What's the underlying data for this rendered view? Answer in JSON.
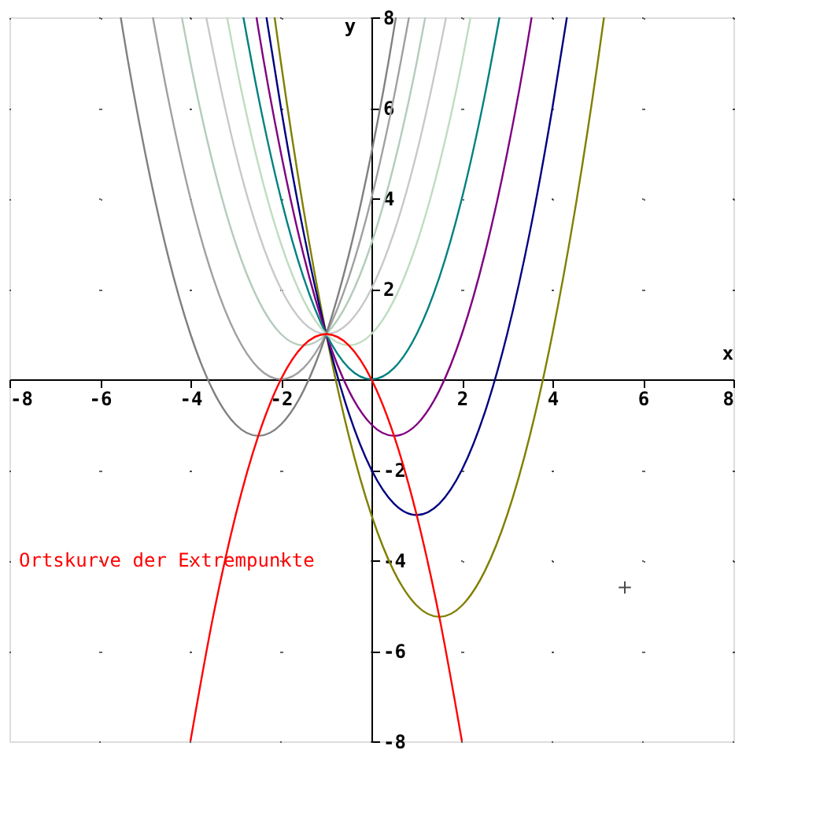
{
  "chart_data": {
    "type": "line",
    "xlabel": "x",
    "ylabel": "y",
    "xlim": [
      -8,
      8
    ],
    "ylim": [
      -8,
      8
    ],
    "xticks": [
      -8,
      -6,
      -4,
      -2,
      2,
      4,
      6,
      8
    ],
    "yticks": [
      -8,
      -6,
      -4,
      -2,
      2,
      4,
      6,
      8
    ],
    "grid": true,
    "marker": "none",
    "line_style": "solid",
    "annotations": [
      "Ortskurve der Extrempunkte"
    ],
    "series": [
      {
        "color": "#808000",
        "x": [
          -2.14,
          -2,
          -1.5,
          -1,
          -0.5,
          0,
          0.5,
          1,
          1.5,
          2,
          2.5,
          3,
          3.5,
          4,
          4.5,
          5,
          5.14
        ],
        "values": [
          8,
          7,
          3.75,
          1,
          -1.25,
          -3,
          -4.25,
          -5,
          -5.25,
          -5,
          -4.25,
          -3,
          -1.25,
          1,
          3.75,
          7,
          8
        ]
      },
      {
        "color": "#000080",
        "x": [
          -2.32,
          -2,
          -1.5,
          -1,
          -0.5,
          0,
          0.5,
          1,
          1.5,
          2,
          2.5,
          3,
          3.5,
          4,
          4.32
        ],
        "values": [
          8,
          6,
          3.25,
          1,
          -0.75,
          -2,
          -2.75,
          -3,
          -2.75,
          -2,
          -0.75,
          1,
          3.25,
          6,
          8
        ]
      },
      {
        "color": "#800080",
        "x": [
          -2.54,
          -2.5,
          -2,
          -1.5,
          -1,
          -0.5,
          0,
          0.5,
          1,
          1.5,
          2,
          2.5,
          3,
          3.5,
          3.54
        ],
        "values": [
          8,
          7.75,
          5,
          2.75,
          1,
          -0.25,
          -1,
          -1.25,
          -1,
          -0.25,
          1,
          2.75,
          5,
          7.75,
          8
        ]
      },
      {
        "color": "#008080",
        "x": [
          -2.83,
          -2.5,
          -2,
          -1.5,
          -1,
          -0.5,
          0,
          0.5,
          1,
          1.5,
          2,
          2.5,
          2.83
        ],
        "values": [
          8,
          6.25,
          4,
          2.25,
          1,
          0.25,
          0,
          0.25,
          1,
          2.25,
          4,
          6.25,
          8
        ]
      },
      {
        "color": "#c0dcc0",
        "x": [
          -3.19,
          -3,
          -2.5,
          -2,
          -1.5,
          -1,
          -0.5,
          0,
          0.5,
          1,
          1.5,
          2,
          2.19
        ],
        "values": [
          8,
          7,
          4.75,
          3,
          1.75,
          1,
          0.75,
          1,
          1.75,
          3,
          4.75,
          7,
          8
        ]
      },
      {
        "color": "#c8c8c8",
        "x": [
          -3.65,
          -3.5,
          -3,
          -2.5,
          -2,
          -1.5,
          -1,
          -0.5,
          0,
          0.5,
          1,
          1.5,
          1.65
        ],
        "values": [
          8,
          7.25,
          5,
          3.25,
          2,
          1.25,
          1,
          1.25,
          2,
          3.25,
          5,
          7.25,
          8
        ]
      },
      {
        "color": "#b4ccbc",
        "x": [
          -4.19,
          -4,
          -3.5,
          -3,
          -2.5,
          -2,
          -1.5,
          -1,
          -0.5,
          0,
          0.5,
          1,
          1.19
        ],
        "values": [
          8,
          7,
          4.75,
          3,
          1.75,
          1,
          0.75,
          1,
          1.75,
          3,
          4.75,
          7,
          8
        ]
      },
      {
        "color": "#a0a0a0",
        "x": [
          -4.83,
          -4.5,
          -4,
          -3.5,
          -3,
          -2.5,
          -2,
          -1.5,
          -1,
          -0.5,
          0,
          0.5,
          0.83
        ],
        "values": [
          8,
          6.25,
          4,
          2.25,
          1,
          0.25,
          0,
          0.25,
          1,
          2.25,
          4,
          6.25,
          8
        ]
      },
      {
        "color": "#808080",
        "x": [
          -5.54,
          -5.5,
          -5,
          -4.5,
          -4,
          -3.5,
          -3,
          -2.5,
          -2,
          -1.5,
          -1,
          -0.5,
          0,
          0.5,
          0.54
        ],
        "values": [
          8,
          7.75,
          5,
          2.75,
          1,
          -0.25,
          -1,
          -1.25,
          -1,
          -0.25,
          1,
          2.75,
          5,
          7.75,
          8
        ]
      },
      {
        "color": "#ff0000",
        "x": [
          -4,
          -3.5,
          -3,
          -2.5,
          -2,
          -1.5,
          -1,
          -0.5,
          0,
          0.5,
          1,
          1.5,
          2
        ],
        "values": [
          -8,
          -5.25,
          -3,
          -1.25,
          0,
          0.75,
          1,
          0.75,
          0,
          -1.25,
          -3,
          -5.25,
          -8
        ]
      },
      {
        "type": "scatter",
        "marker": "cross",
        "color": "#000000",
        "x": [
          5.6
        ],
        "values": [
          -4.6
        ]
      }
    ]
  }
}
